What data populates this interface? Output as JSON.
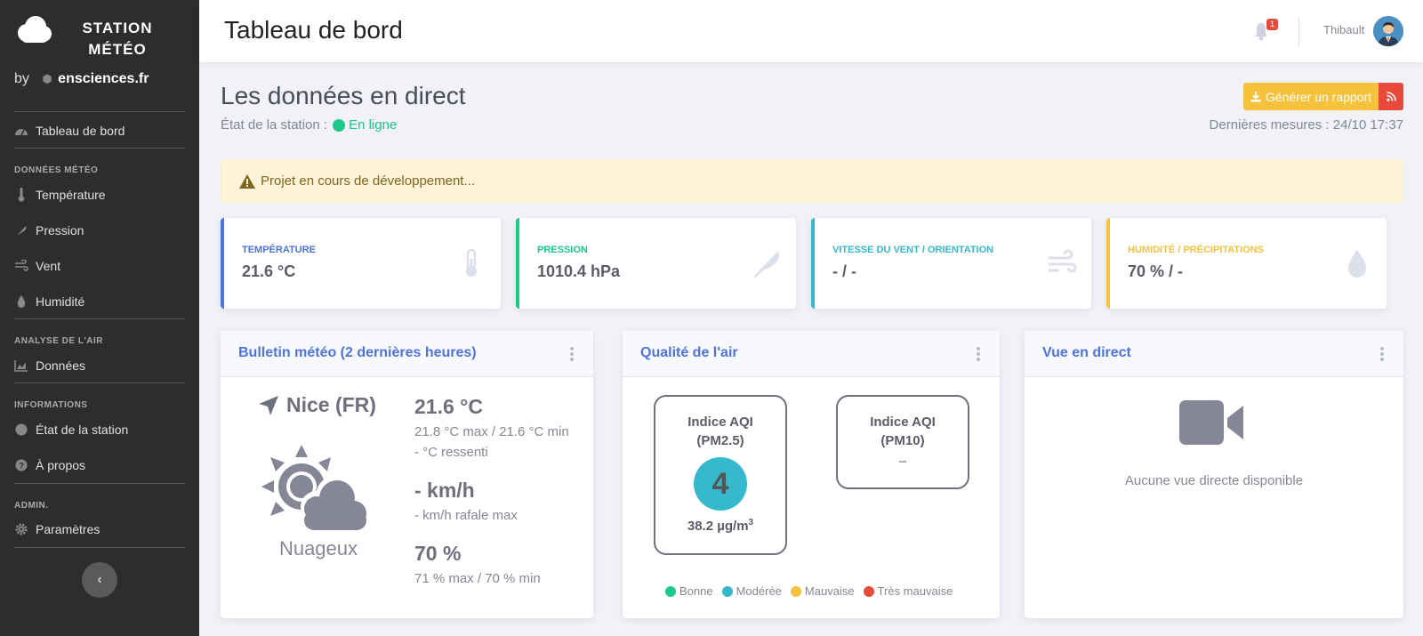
{
  "brand": {
    "title_line1": "STATION",
    "title_line2": "MÉTÉO",
    "by": "by",
    "site": "ensciences.fr"
  },
  "sidebar": {
    "dashboard": "Tableau de bord",
    "section_weather": "DONNÉES MÉTÉO",
    "temperature": "Température",
    "pressure": "Pression",
    "wind": "Vent",
    "humidity": "Humidité",
    "section_air": "ANALYSE DE L'AIR",
    "data": "Données",
    "section_info": "INFORMATIONS",
    "station_state": "État de la station",
    "about": "À propos",
    "section_admin": "ADMIN.",
    "settings": "Paramètres",
    "toggle": "‹"
  },
  "topbar": {
    "title": "Tableau de bord",
    "notif_count": "1",
    "username": "Thibault"
  },
  "main": {
    "heading": "Les données en direct",
    "state_label": "État de la station :",
    "state_value": "En ligne",
    "report_button": "Générer un rapport",
    "last_measures": "Dernières mesures : 24/10 17:37",
    "alert": "Projet en cours de développement..."
  },
  "stats": [
    {
      "label": "TEMPÉRATURE",
      "value": "21.6 °C",
      "color": "#4e73df",
      "icon": "thermometer-icon"
    },
    {
      "label": "PRESSION",
      "value": "1010.4 hPa",
      "color": "#1cc88a",
      "icon": "feather-icon"
    },
    {
      "label": "VITESSE DU VENT / ORIENTATION",
      "value": "- / -",
      "color": "#36b9cc",
      "icon": "wind-icon"
    },
    {
      "label": "HUMIDITÉ / PRÉCIPITATIONS",
      "value": "70 % / -",
      "color": "#f6c23e",
      "icon": "droplet-icon"
    }
  ],
  "bulletin": {
    "title": "Bulletin météo (2 dernières heures)",
    "city": "Nice (FR)",
    "sky": "Nuageux",
    "temp": "21.6 °C",
    "temp_minmax": "21.8 °C max / 21.6 °C min",
    "temp_feel": "- °C ressenti",
    "wind": "- km/h",
    "wind_gust": "- km/h rafale max",
    "humidity": "70 %",
    "humidity_minmax": "71 % max / 70 % min"
  },
  "air": {
    "title": "Qualité de l'air",
    "pm25_label_1": "Indice AQI",
    "pm25_label_2": "(PM2.5)",
    "pm25_index": "4",
    "pm25_value": "38.2 µg/m",
    "pm25_unit_sup": "3",
    "pm10_label_1": "Indice AQI",
    "pm10_label_2": "(PM10)",
    "pm10_value": "–",
    "legend": [
      {
        "label": "Bonne",
        "color": "#1cc88a"
      },
      {
        "label": "Modérée",
        "color": "#36b9cc"
      },
      {
        "label": "Mauvaise",
        "color": "#f6c23e"
      },
      {
        "label": "Très mauvaise",
        "color": "#e74a3b"
      }
    ]
  },
  "live": {
    "title": "Vue en direct",
    "empty": "Aucune vue directe disponible"
  }
}
